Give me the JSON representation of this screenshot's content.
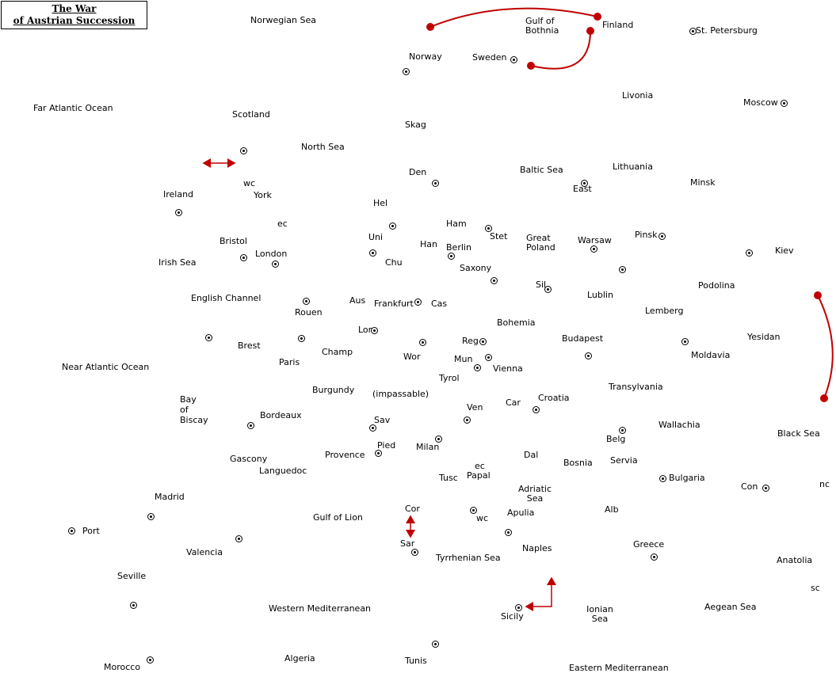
{
  "title": {
    "line1": "The War",
    "line2": "of Austrian Succession"
  },
  "colors": {
    "background": "#ffffff",
    "supply_center": "#000000",
    "connector": "#c00000"
  },
  "regions": [
    "Norwegian Sea",
    "Gulf of Bothnia",
    "Finland",
    "St. Petersburg",
    "Norway",
    "Sweden",
    "Far Atlantic Ocean",
    "Livonia",
    "Moscow",
    "Scotland",
    "Skag",
    "North Sea",
    "Den",
    "Baltic Sea",
    "Lithuania",
    "wc",
    "York",
    "East",
    "Minsk",
    "Ireland",
    "Hel",
    "ec",
    "Ham",
    "Stet",
    "Uni",
    "Great Poland",
    "Pinsk",
    "Bristol",
    "Han",
    "Berlin",
    "Warsaw",
    "London",
    "Irish Sea",
    "Chu",
    "Kiev",
    "Saxony",
    "Sil",
    "Podolina",
    "Lublin",
    "English Channel",
    "Aus",
    "Frankfurt",
    "Cas",
    "Rouen",
    "Lemberg",
    "Bohemia",
    "Lor",
    "Yesidan",
    "Budapest",
    "Reg",
    "Brest",
    "Champ",
    "Paris",
    "Wor",
    "Mun",
    "Moldavia",
    "Near Atlantic Ocean",
    "Vienna",
    "Tyrol",
    "Transylvania",
    "Burgundy",
    "(impassable)",
    "Bay of Biscay",
    "Croatia",
    "Car",
    "Ven",
    "Sav",
    "Bordeaux",
    "Wallachia",
    "Pied",
    "Black Sea",
    "Belg",
    "Milan",
    "Dal",
    "Gascony",
    "Provence",
    "Servia",
    "Bosnia",
    "Languedoc",
    "Papal",
    "Bulgaria",
    "Tusc",
    "Con",
    "nc",
    "Madrid",
    "Adriatic Sea",
    "Cor",
    "Alb",
    "Apulia",
    "Gulf of Lion",
    "Port",
    "Naples",
    "Greece",
    "Sar",
    "Valencia",
    "Tyrrhenian Sea",
    "Anatolia",
    "Seville",
    "sc",
    "Western Mediterranean",
    "Sicily",
    "Ionian Sea",
    "Aegean Sea",
    "Algeria",
    "Tunis",
    "Morocco",
    "Eastern Mediterranean"
  ]
}
